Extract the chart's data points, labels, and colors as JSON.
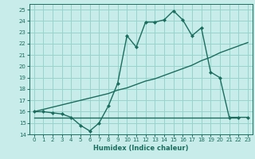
{
  "xlabel": "Humidex (Indice chaleur)",
  "bg_color": "#c8ecea",
  "grid_color": "#96d4cc",
  "line_color": "#1a6e5e",
  "xlim": [
    -0.5,
    23.5
  ],
  "ylim": [
    14,
    25.5
  ],
  "yticks": [
    14,
    15,
    16,
    17,
    18,
    19,
    20,
    21,
    22,
    23,
    24,
    25
  ],
  "xticks": [
    0,
    1,
    2,
    3,
    4,
    5,
    6,
    7,
    8,
    9,
    10,
    11,
    12,
    13,
    14,
    15,
    16,
    17,
    18,
    19,
    20,
    21,
    22,
    23
  ],
  "line1_x": [
    0,
    1,
    2,
    3,
    4,
    5,
    6,
    7,
    8,
    9,
    10,
    11,
    12,
    13,
    14,
    15,
    16,
    17,
    18,
    19,
    20,
    21,
    22,
    23
  ],
  "line1_y": [
    16.0,
    16.0,
    15.9,
    15.8,
    15.5,
    14.8,
    14.3,
    15.0,
    16.5,
    18.5,
    22.7,
    21.7,
    23.9,
    23.9,
    24.1,
    24.9,
    24.1,
    22.7,
    23.4,
    19.5,
    19.0,
    15.5,
    15.5,
    15.5
  ],
  "line2_x": [
    0,
    1,
    2,
    3,
    4,
    5,
    6,
    7,
    8,
    9,
    10,
    11,
    12,
    13,
    14,
    15,
    16,
    17,
    18,
    19,
    20,
    21,
    22,
    23
  ],
  "line2_y": [
    16.0,
    16.2,
    16.4,
    16.6,
    16.8,
    17.0,
    17.2,
    17.4,
    17.6,
    17.9,
    18.1,
    18.4,
    18.7,
    18.9,
    19.2,
    19.5,
    19.8,
    20.1,
    20.5,
    20.8,
    21.2,
    21.5,
    21.8,
    22.1
  ],
  "line3_x": [
    0,
    22
  ],
  "line3_y": [
    15.5,
    15.5
  ]
}
